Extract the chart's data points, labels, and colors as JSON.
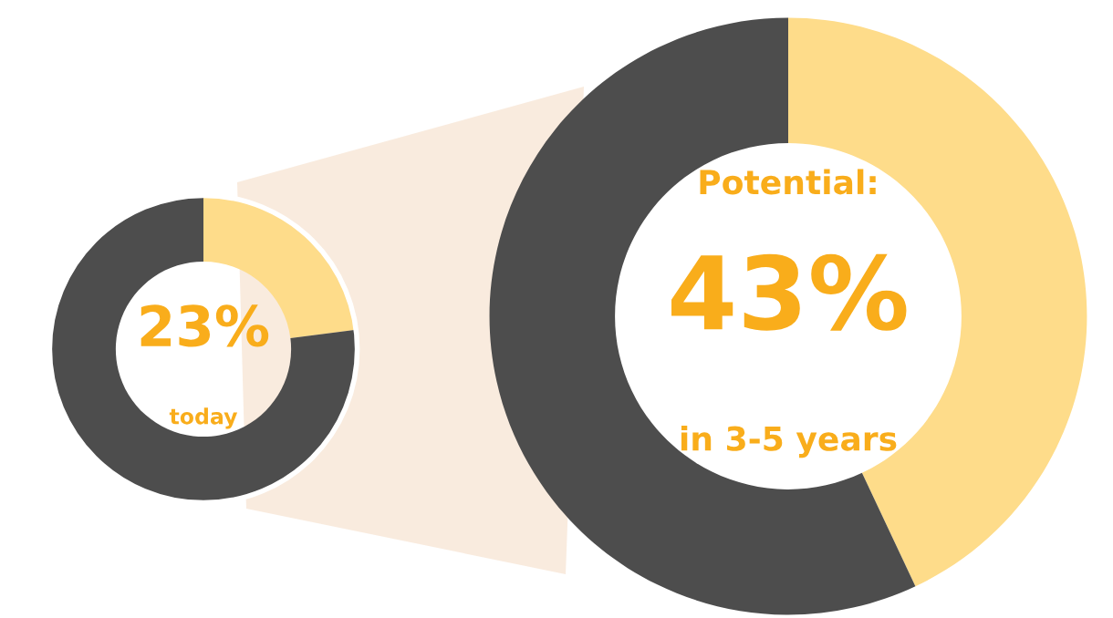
{
  "chart_data": [
    {
      "type": "donut",
      "categories": [
        null,
        null
      ],
      "values": [
        23,
        77
      ],
      "colors": [
        "#fedc8a",
        "#4d4d4d"
      ],
      "annotations": [
        "23%",
        "today"
      ]
    },
    {
      "type": "donut",
      "categories": [
        null,
        null
      ],
      "values": [
        43,
        57
      ],
      "colors": [
        "#fedc8a",
        "#4d4d4d"
      ],
      "annotations": [
        "Potential:",
        "43%",
        "in 3-5 years"
      ]
    }
  ]
}
